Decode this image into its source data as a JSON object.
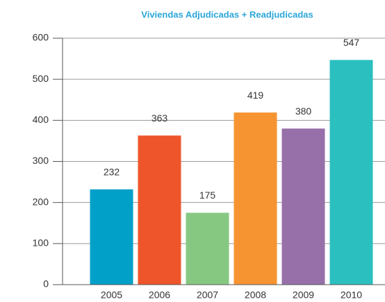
{
  "chart_data": {
    "type": "bar",
    "title": "Viviendas Adjudicadas + Readjudicadas",
    "categories": [
      "2005",
      "2006",
      "2007",
      "2008",
      "2009",
      "2010"
    ],
    "values": [
      232,
      363,
      175,
      419,
      380,
      547
    ],
    "colors": [
      "#00a0c9",
      "#ee552b",
      "#86c882",
      "#f69432",
      "#9770a9",
      "#2cbfbf"
    ],
    "ylim": [
      0,
      600
    ],
    "yticks": [
      0,
      100,
      200,
      300,
      400,
      500,
      600
    ],
    "grid": true
  }
}
